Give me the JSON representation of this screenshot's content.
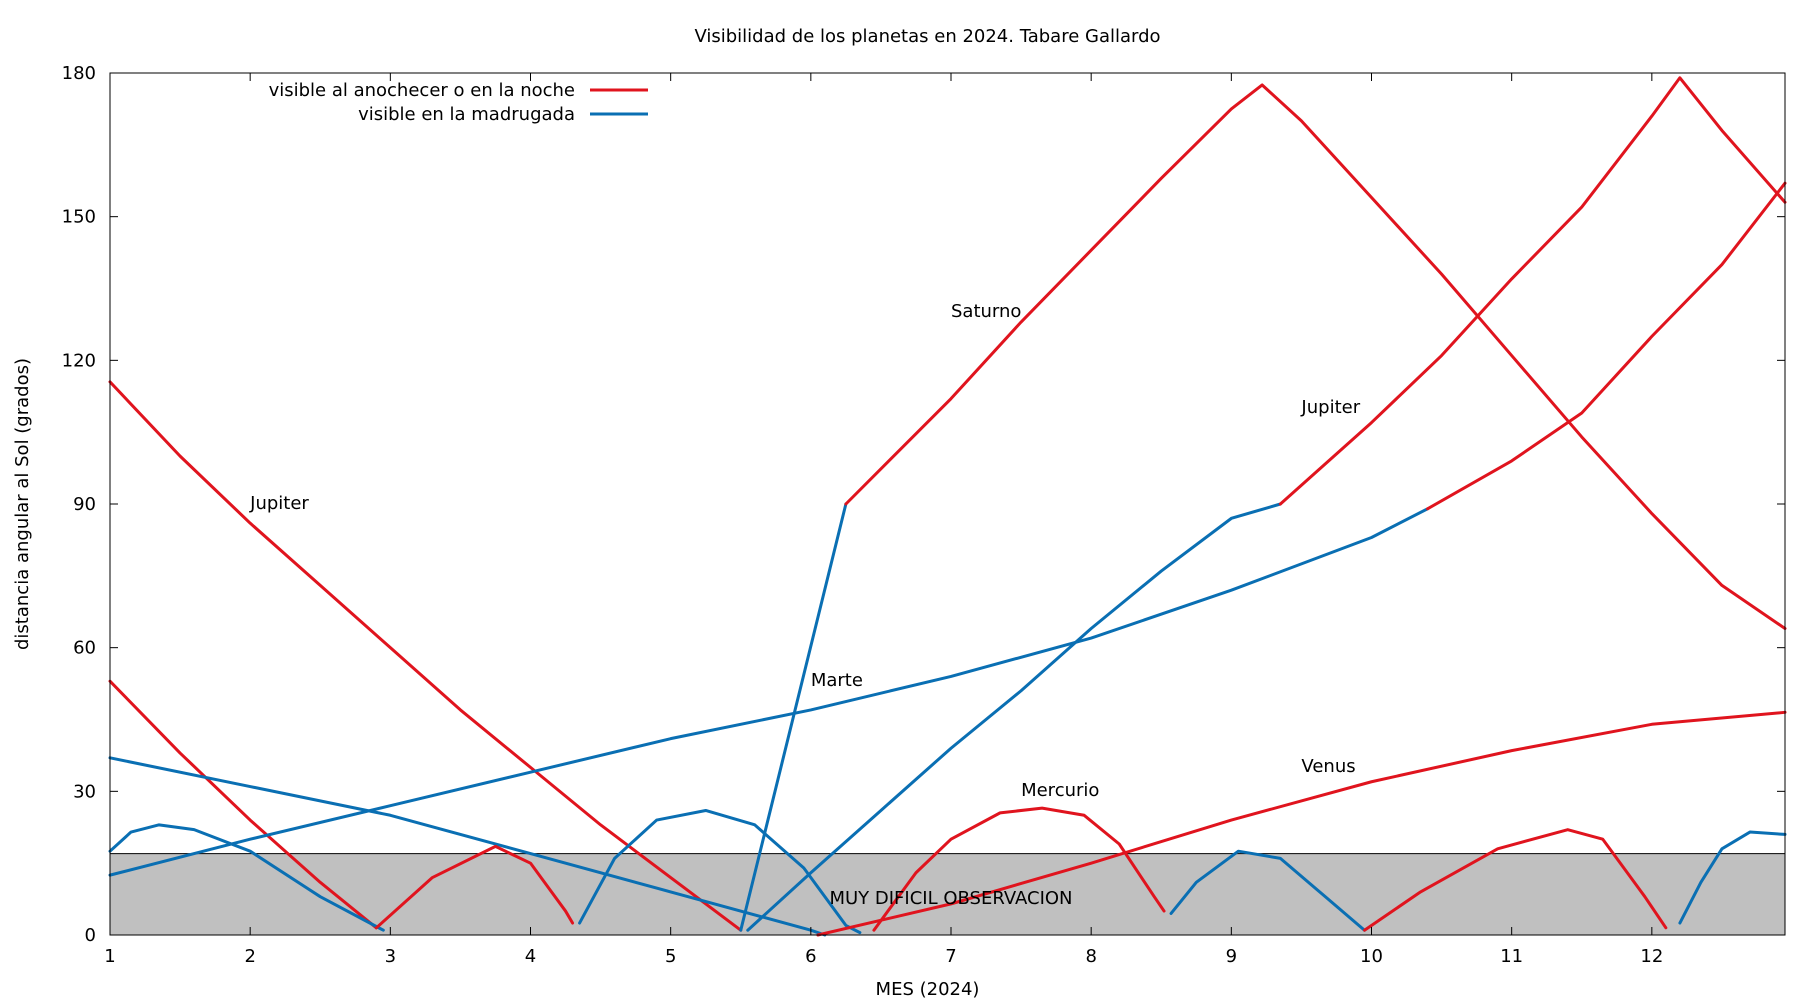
{
  "chart_data": {
    "type": "line",
    "title": "Visibilidad de los planetas en 2024. Tabare Gallardo",
    "xlabel": "MES (2024)",
    "ylabel": "distancia angular al Sol (grados)",
    "xlim": [
      1,
      12.95
    ],
    "ylim": [
      0,
      180
    ],
    "x_ticks": [
      1,
      2,
      3,
      4,
      5,
      6,
      7,
      8,
      9,
      10,
      11,
      12
    ],
    "y_ticks": [
      0,
      30,
      60,
      90,
      120,
      150,
      180
    ],
    "grid": false,
    "legend_position": "top-left",
    "legend": [
      {
        "label": "visible al anochecer o en la noche",
        "color": "#e0141e"
      },
      {
        "label": "visible en la madrugada",
        "color": "#0a6fb3"
      }
    ],
    "shaded_region": {
      "y_from": 0,
      "y_to": 17,
      "color": "#c0c0c0",
      "label": "MUY  DIFICIL  OBSERVACION"
    },
    "annotations": [
      {
        "text": "Jupiter",
        "x": 2.0,
        "y": 89
      },
      {
        "text": "Saturno",
        "x": 7.0,
        "y": 129
      },
      {
        "text": "Jupiter",
        "x": 9.5,
        "y": 109
      },
      {
        "text": "Marte",
        "x": 6.0,
        "y": 52
      },
      {
        "text": "Mercurio",
        "x": 7.5,
        "y": 29
      },
      {
        "text": "Venus",
        "x": 9.5,
        "y": 34
      }
    ],
    "series": [
      {
        "color": "#e0141e",
        "points": [
          [
            1,
            115.5
          ],
          [
            1.5,
            100
          ],
          [
            2,
            86
          ],
          [
            2.5,
            73
          ],
          [
            3,
            60
          ],
          [
            3.5,
            47
          ],
          [
            4,
            35
          ],
          [
            4.5,
            23
          ],
          [
            5,
            12
          ],
          [
            5.5,
            1
          ]
        ]
      },
      {
        "color": "#e0141e",
        "points": [
          [
            1,
            53
          ],
          [
            1.5,
            38
          ],
          [
            2,
            24
          ],
          [
            2.5,
            11
          ],
          [
            2.9,
            1.5
          ]
        ]
      },
      {
        "color": "#0a6fb3",
        "points": [
          [
            1,
            37
          ],
          [
            2,
            31
          ],
          [
            3,
            25
          ],
          [
            4,
            17
          ],
          [
            5,
            9
          ],
          [
            6,
            1
          ],
          [
            6.1,
            0
          ]
        ]
      },
      {
        "color": "#0a6fb3",
        "points": [
          [
            1,
            12.5
          ],
          [
            2,
            20
          ],
          [
            3,
            27
          ],
          [
            4,
            34
          ],
          [
            5,
            41
          ],
          [
            6,
            47
          ],
          [
            7,
            54
          ],
          [
            8,
            62
          ],
          [
            9,
            72
          ],
          [
            10,
            83
          ],
          [
            10.4,
            89
          ]
        ]
      },
      {
        "color": "#e0141e",
        "points": [
          [
            10.4,
            89
          ],
          [
            11,
            99
          ],
          [
            11.5,
            109
          ],
          [
            12,
            125
          ],
          [
            12.5,
            140
          ],
          [
            12.95,
            157
          ]
        ]
      },
      {
        "color": "#0a6fb3",
        "points": [
          [
            1,
            17.5
          ],
          [
            1.15,
            21.5
          ],
          [
            1.35,
            23
          ],
          [
            1.6,
            22
          ],
          [
            2,
            17.5
          ],
          [
            2.5,
            8
          ],
          [
            2.95,
            1
          ]
        ]
      },
      {
        "color": "#e0141e",
        "points": [
          [
            2.9,
            1.5
          ],
          [
            3.3,
            12
          ],
          [
            3.75,
            18.5
          ],
          [
            4.0,
            15
          ],
          [
            4.25,
            5
          ],
          [
            4.3,
            2.5
          ]
        ]
      },
      {
        "color": "#0a6fb3",
        "points": [
          [
            4.35,
            2.5
          ],
          [
            4.6,
            16
          ],
          [
            4.9,
            24
          ],
          [
            5.25,
            26
          ],
          [
            5.6,
            23
          ],
          [
            5.95,
            14
          ],
          [
            6.25,
            2
          ],
          [
            6.35,
            0.5
          ]
        ]
      },
      {
        "color": "#e0141e",
        "points": [
          [
            6.45,
            1
          ],
          [
            6.75,
            13
          ],
          [
            7.0,
            20
          ],
          [
            7.35,
            25.5
          ],
          [
            7.65,
            26.5
          ],
          [
            7.95,
            25
          ],
          [
            8.2,
            19
          ],
          [
            8.45,
            8
          ],
          [
            8.52,
            5
          ]
        ]
      },
      {
        "color": "#0a6fb3",
        "points": [
          [
            8.57,
            4.5
          ],
          [
            8.75,
            11
          ],
          [
            9.05,
            17.5
          ],
          [
            9.35,
            16
          ],
          [
            9.65,
            8.5
          ],
          [
            9.95,
            1
          ]
        ]
      },
      {
        "color": "#e0141e",
        "points": [
          [
            9.95,
            1
          ],
          [
            10.35,
            9
          ],
          [
            10.9,
            18
          ],
          [
            11.4,
            22
          ],
          [
            11.65,
            20
          ],
          [
            11.95,
            8
          ],
          [
            12.1,
            1.5
          ]
        ]
      },
      {
        "color": "#0a6fb3",
        "points": [
          [
            12.2,
            2.5
          ],
          [
            12.35,
            11
          ],
          [
            12.5,
            18
          ],
          [
            12.7,
            21.5
          ],
          [
            12.95,
            21
          ]
        ]
      },
      {
        "color": "#0a6fb3",
        "points": [
          [
            5.55,
            1
          ],
          [
            6,
            13
          ],
          [
            6.5,
            26
          ],
          [
            7,
            39
          ],
          [
            7.5,
            51
          ],
          [
            8,
            64
          ],
          [
            8.5,
            76
          ],
          [
            9.0,
            87
          ],
          [
            9.35,
            90
          ]
        ]
      },
      {
        "color": "#e0141e",
        "points": [
          [
            9.35,
            90
          ],
          [
            10,
            107
          ],
          [
            10.5,
            121
          ],
          [
            11,
            137
          ],
          [
            11.5,
            152
          ],
          [
            12,
            171
          ],
          [
            12.2,
            179
          ],
          [
            12.5,
            168
          ],
          [
            12.95,
            153
          ]
        ]
      },
      {
        "color": "#0a6fb3",
        "points": [
          [
            5.5,
            1
          ],
          [
            6.25,
            90
          ]
        ]
      },
      {
        "color": "#e0141e",
        "points": [
          [
            6.25,
            90
          ],
          [
            7,
            112
          ],
          [
            7.5,
            128
          ],
          [
            8,
            143
          ],
          [
            8.5,
            158
          ],
          [
            9,
            172.5
          ],
          [
            9.22,
            177.5
          ],
          [
            9.5,
            170
          ],
          [
            10,
            154
          ],
          [
            10.5,
            138
          ],
          [
            11,
            121
          ],
          [
            11.5,
            104
          ],
          [
            12,
            88
          ],
          [
            12.5,
            73
          ],
          [
            12.95,
            64
          ]
        ]
      },
      {
        "color": "#e0141e",
        "points": [
          [
            6.05,
            0
          ],
          [
            7,
            6.5
          ],
          [
            8,
            15
          ],
          [
            9,
            24
          ],
          [
            10,
            32
          ],
          [
            11,
            38.5
          ],
          [
            12,
            44
          ],
          [
            12.95,
            46.5
          ]
        ]
      }
    ]
  }
}
